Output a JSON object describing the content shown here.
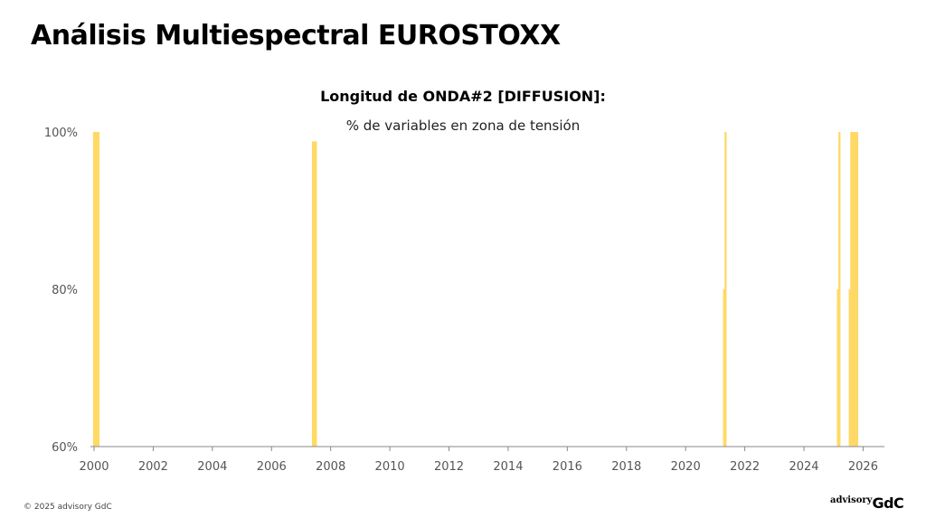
{
  "slide": {
    "title": "Análisis Multiespectral EUROSTOXX",
    "footer": "© 2025 advisory GdC",
    "brand_small": "advisory",
    "brand_big": "GdC"
  },
  "chart_data": {
    "type": "bar",
    "title": "Longitud de ONDA#2 [DIFFUSION]:",
    "subtitle": "% de variables en zona de tensión",
    "xlabel": "",
    "ylabel": "",
    "xlim": [
      2000,
      2027
    ],
    "ylim": [
      60,
      100
    ],
    "x_ticks": [
      2000,
      2002,
      2004,
      2006,
      2008,
      2010,
      2012,
      2014,
      2016,
      2018,
      2020,
      2022,
      2024,
      2026
    ],
    "y_ticks": [
      60,
      80,
      100
    ],
    "y_tick_labels": [
      "60%",
      "80%",
      "100%"
    ],
    "grid": false,
    "legend": "none",
    "bar_color": "#FFD966",
    "axis_color": "#888888",
    "x": [
      2000.0,
      2000.05,
      2000.1,
      2000.15,
      2007.4,
      2007.45,
      2007.5,
      2021.3,
      2021.35,
      2025.15,
      2025.2,
      2025.55,
      2025.6,
      2025.65,
      2025.7,
      2025.75,
      2025.8
    ],
    "values": [
      100,
      100,
      100,
      100,
      98.8,
      98.8,
      98.8,
      80,
      100,
      80,
      100,
      80,
      100,
      100,
      100,
      100,
      100
    ]
  }
}
